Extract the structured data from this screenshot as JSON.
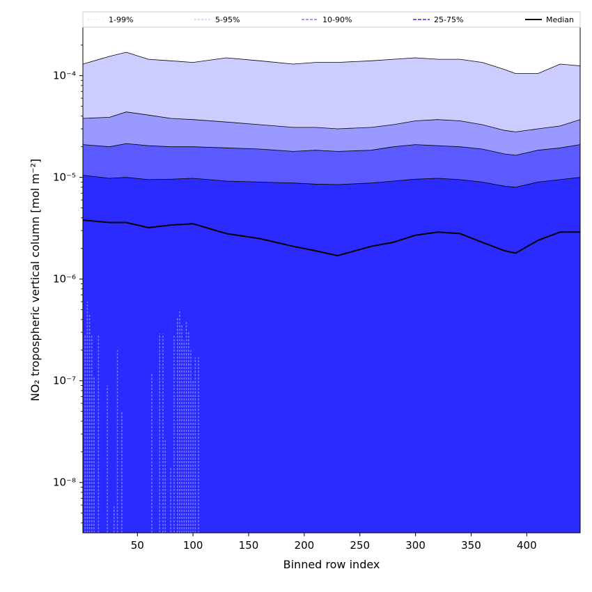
{
  "chart_data": {
    "type": "area",
    "title": "",
    "xlabel": "Binned row index",
    "ylabel": "NO₂ tropospheric vertical column [mol m⁻²]",
    "xlim": [
      1,
      448
    ],
    "ylim": [
      3.2e-09,
      0.0003
    ],
    "yscale": "log",
    "xticks": [
      50,
      100,
      150,
      200,
      250,
      300,
      350,
      400
    ],
    "yticks": [
      {
        "value": 1e-08,
        "label": "10⁻⁸"
      },
      {
        "value": 1e-07,
        "label": "10⁻⁷"
      },
      {
        "value": 1e-06,
        "label": "10⁻⁶"
      },
      {
        "value": 1e-05,
        "label": "10⁻⁵"
      },
      {
        "value": 0.0001,
        "label": "10⁻⁴"
      }
    ],
    "grid": false,
    "legend_position": "top",
    "x": [
      1,
      25,
      40,
      60,
      80,
      100,
      130,
      160,
      190,
      210,
      230,
      260,
      280,
      300,
      320,
      340,
      360,
      380,
      390,
      410,
      430,
      448
    ],
    "series": [
      {
        "name": "1-99%",
        "color": "#ccccff",
        "lower_floor": true,
        "upper": [
          0.00013,
          0.000155,
          0.00017,
          0.000145,
          0.00014,
          0.000135,
          0.00015,
          0.00014,
          0.00013,
          0.000135,
          0.000135,
          0.00014,
          0.000145,
          0.00015,
          0.000145,
          0.000145,
          0.000135,
          0.000115,
          0.000105,
          0.000105,
          0.00013,
          0.000125
        ]
      },
      {
        "name": "5-95%",
        "color": "#9999ff",
        "upper": [
          3.8e-05,
          3.9e-05,
          4.4e-05,
          4.1e-05,
          3.8e-05,
          3.7e-05,
          3.5e-05,
          3.3e-05,
          3.1e-05,
          3.1e-05,
          3e-05,
          3.1e-05,
          3.3e-05,
          3.6e-05,
          3.7e-05,
          3.6e-05,
          3.3e-05,
          2.9e-05,
          2.8e-05,
          3e-05,
          3.2e-05,
          3.7e-05
        ]
      },
      {
        "name": "10-90%",
        "color": "#5a5aff",
        "upper": [
          2.1e-05,
          2e-05,
          2.15e-05,
          2.05e-05,
          2e-05,
          2e-05,
          1.95e-05,
          1.9e-05,
          1.8e-05,
          1.85e-05,
          1.8e-05,
          1.85e-05,
          2e-05,
          2.1e-05,
          2.05e-05,
          2e-05,
          1.9e-05,
          1.7e-05,
          1.65e-05,
          1.85e-05,
          1.95e-05,
          2.1e-05
        ]
      },
      {
        "name": "25-75%",
        "color": "#2b2bff",
        "upper": [
          1.05e-05,
          9.8e-06,
          1e-05,
          9.5e-06,
          9.6e-06,
          9.8e-06,
          9.2e-06,
          9e-06,
          8.8e-06,
          8.6e-06,
          8.5e-06,
          8.8e-06,
          9.2e-06,
          9.6e-06,
          9.8e-06,
          9.5e-06,
          9e-06,
          8.2e-06,
          8e-06,
          9e-06,
          9.5e-06,
          1e-05
        ]
      },
      {
        "name": "Median",
        "color": "#000000",
        "values": [
          3.8e-06,
          3.6e-06,
          3.6e-06,
          3.2e-06,
          3.4e-06,
          3.5e-06,
          2.8e-06,
          2.5e-06,
          2.1e-06,
          1.9e-06,
          1.7e-06,
          2.1e-06,
          2.3e-06,
          2.7e-06,
          2.9e-06,
          2.8e-06,
          2.3e-06,
          1.9e-06,
          1.8e-06,
          2.4e-06,
          2.9e-06,
          2.9e-06
        ]
      }
    ],
    "low_spikes": {
      "color": "#7777ff",
      "x": [
        3,
        5,
        7,
        9,
        11,
        15,
        23,
        29,
        32,
        36,
        63,
        70,
        73,
        75,
        80,
        83,
        86,
        88,
        90,
        92,
        94,
        96,
        98,
        100,
        102,
        105
      ],
      "values": [
        2.8e-07,
        6e-07,
        4.5e-07,
        2.8e-07,
        1.1e-07,
        2.8e-07,
        9e-08,
        6e-09,
        2e-07,
        5e-08,
        1.2e-07,
        2.9e-07,
        2.9e-07,
        2.6e-08,
        1.4e-08,
        2.8e-07,
        4.2e-07,
        5e-07,
        3.5e-07,
        2.5e-07,
        3.8e-07,
        3e-07,
        2e-07,
        1e-07,
        1.7e-07,
        1.7e-07
      ]
    }
  }
}
